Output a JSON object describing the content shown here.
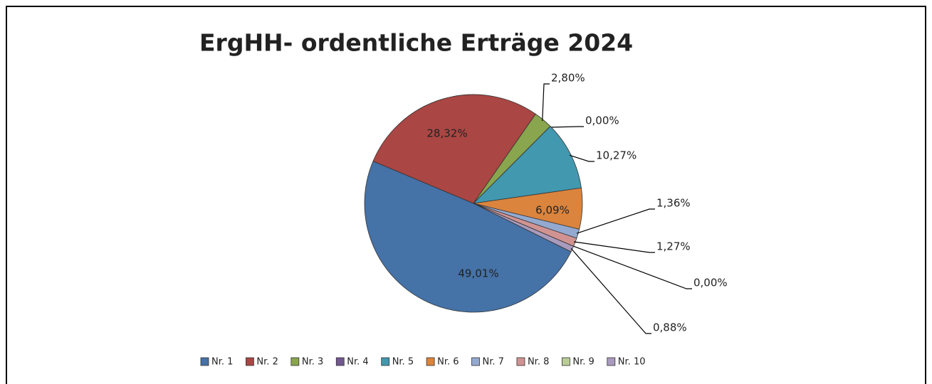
{
  "chart_data": {
    "type": "pie",
    "title": "ErgHH- ordentliche Erträge 2024",
    "categories": [
      "Nr. 1",
      "Nr. 2",
      "Nr. 3",
      "Nr. 4",
      "Nr. 5",
      "Nr. 6",
      "Nr. 7",
      "Nr. 8",
      "Nr. 9",
      "Nr. 10"
    ],
    "values": [
      49.01,
      28.32,
      2.8,
      0.0,
      10.27,
      6.09,
      1.36,
      1.27,
      0.0,
      0.88
    ],
    "value_labels": [
      "49,01%",
      "28,32%",
      "2,80%",
      "0,00%",
      "10,27%",
      "6,09%",
      "1,36%",
      "1,27%",
      "0,00%",
      "0,88%"
    ],
    "colors": [
      "#4572a7",
      "#aa4643",
      "#89a54e",
      "#71588f",
      "#4198af",
      "#db843d",
      "#93a9cf",
      "#d19392",
      "#b9cd96",
      "#a99bbd"
    ],
    "legend": "bottom"
  }
}
